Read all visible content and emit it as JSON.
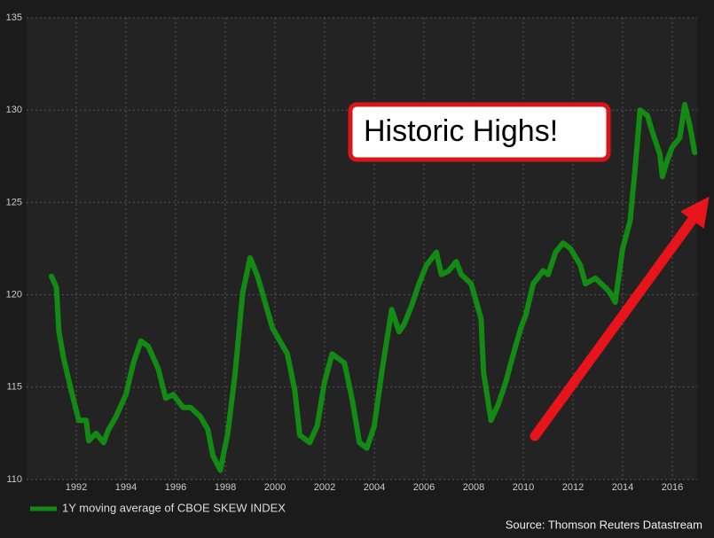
{
  "chart_data": {
    "type": "line",
    "annotation": "Historic Highs!",
    "source": "Source: Thomson Reuters Datastream",
    "x": [
      1991.0,
      1991.2,
      1991.3,
      1991.5,
      1991.8,
      1992.1,
      1992.4,
      1992.5,
      1992.8,
      1993.1,
      1993.3,
      1993.6,
      1994.0,
      1994.3,
      1994.6,
      1994.9,
      1995.3,
      1995.6,
      1995.9,
      1996.3,
      1996.6,
      1997.0,
      1997.3,
      1997.5,
      1997.8,
      1998.1,
      1998.4,
      1998.7,
      1999.0,
      1999.3,
      1999.6,
      1999.9,
      2000.2,
      2000.5,
      2000.8,
      2001.0,
      2001.4,
      2001.7,
      2002.0,
      2002.3,
      2002.6,
      2002.8,
      2003.1,
      2003.4,
      2003.7,
      2004.0,
      2004.3,
      2004.7,
      2005.0,
      2005.2,
      2005.5,
      2005.8,
      2006.1,
      2006.5,
      2006.7,
      2007.0,
      2007.3,
      2007.5,
      2007.9,
      2008.3,
      2008.4,
      2008.7,
      2009.0,
      2009.3,
      2009.6,
      2009.9,
      2010.1,
      2010.4,
      2010.8,
      2011.0,
      2011.3,
      2011.6,
      2011.9,
      2012.3,
      2012.5,
      2012.9,
      2013.3,
      2013.5,
      2013.7,
      2014.0,
      2014.3,
      2014.5,
      2014.7,
      2015.0,
      2015.2,
      2015.5,
      2015.6,
      2015.8,
      2016.0,
      2016.3,
      2016.5,
      2016.7,
      2016.9
    ],
    "series": [
      {
        "name": "1Y moving average of CBOE SKEW INDEX",
        "color": "#138a13",
        "values": [
          121.0,
          120.4,
          118,
          116.5,
          114.8,
          113.2,
          113.2,
          112.1,
          112.5,
          112.0,
          112.7,
          113.4,
          114.6,
          116.3,
          117.5,
          117.2,
          116,
          114.4,
          114.6,
          113.9,
          113.9,
          113.4,
          112.7,
          111.3,
          110.5,
          112.5,
          115.8,
          120.1,
          122,
          121,
          119.6,
          118.2,
          117.5,
          116.8,
          114.8,
          112.4,
          112,
          112.9,
          115.3,
          116.8,
          116.5,
          116.3,
          114.4,
          112,
          111.7,
          112.9,
          115.8,
          119.2,
          118,
          118.4,
          119.4,
          120.6,
          121.6,
          122.3,
          121.1,
          121.3,
          121.8,
          121.1,
          120.6,
          118.7,
          115.8,
          113.2,
          114.1,
          115.3,
          116.8,
          118.2,
          118.9,
          120.6,
          121.3,
          121.1,
          122.3,
          122.8,
          122.5,
          121.6,
          120.6,
          120.9,
          120.4,
          120.1,
          119.6,
          122.5,
          124,
          126.8,
          130,
          129.7,
          128.8,
          127.6,
          126.4,
          127.3,
          128,
          128.5,
          130.3,
          129.2,
          127.7
        ]
      }
    ],
    "xlim": [
      1990,
      2017
    ],
    "xticks": [
      1992,
      1994,
      1996,
      1998,
      2000,
      2002,
      2004,
      2006,
      2008,
      2010,
      2012,
      2014,
      2016
    ],
    "ylim": [
      110,
      135
    ],
    "yticks": [
      110,
      115,
      120,
      125,
      130,
      135
    ],
    "grid": true
  }
}
